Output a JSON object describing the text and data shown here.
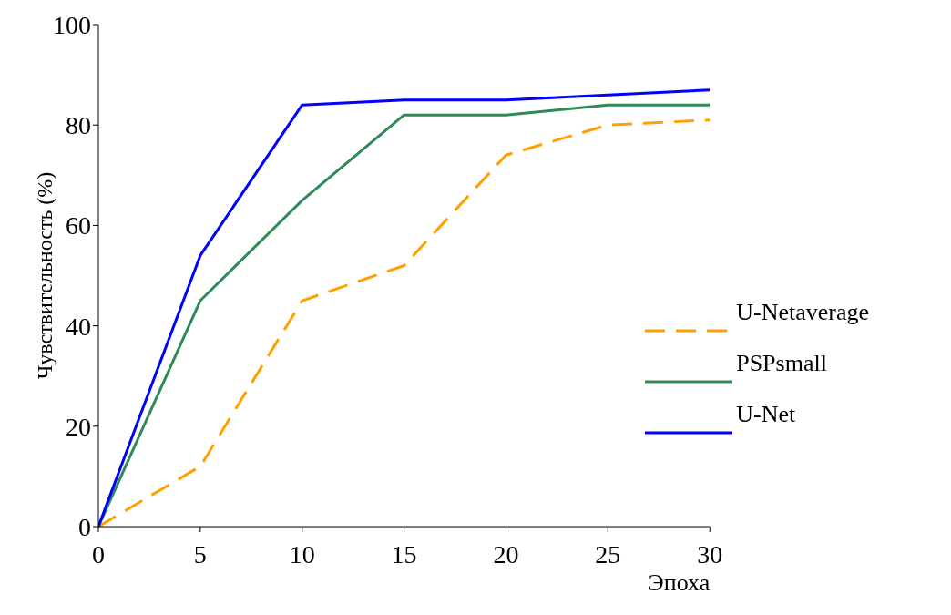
{
  "chart_data": {
    "type": "line",
    "xlabel": "Эпоха",
    "ylabel": "Чувствительность (%)",
    "x": [
      0,
      5,
      10,
      15,
      20,
      25,
      30
    ],
    "series": [
      {
        "name": "U-Netaverage",
        "color": "#ffa000",
        "values": [
          0,
          12,
          45,
          52,
          74,
          80,
          81
        ],
        "line_style": "dashed"
      },
      {
        "name": "PSPsmall",
        "color": "#2e8b57",
        "values": [
          0,
          45,
          65,
          82,
          82,
          84,
          84
        ]
      },
      {
        "name": "U-Net",
        "color": "#0000ff",
        "values": [
          0,
          54,
          84,
          85,
          85,
          86,
          87
        ]
      }
    ],
    "xlim": [
      0,
      30
    ],
    "xticks": [
      0,
      5,
      10,
      15,
      20,
      25,
      30
    ],
    "ylim": [
      0,
      100
    ],
    "yticks": [
      0,
      20,
      40,
      60,
      80,
      100
    ],
    "grid": false,
    "legend": "right",
    "marker": "none"
  }
}
